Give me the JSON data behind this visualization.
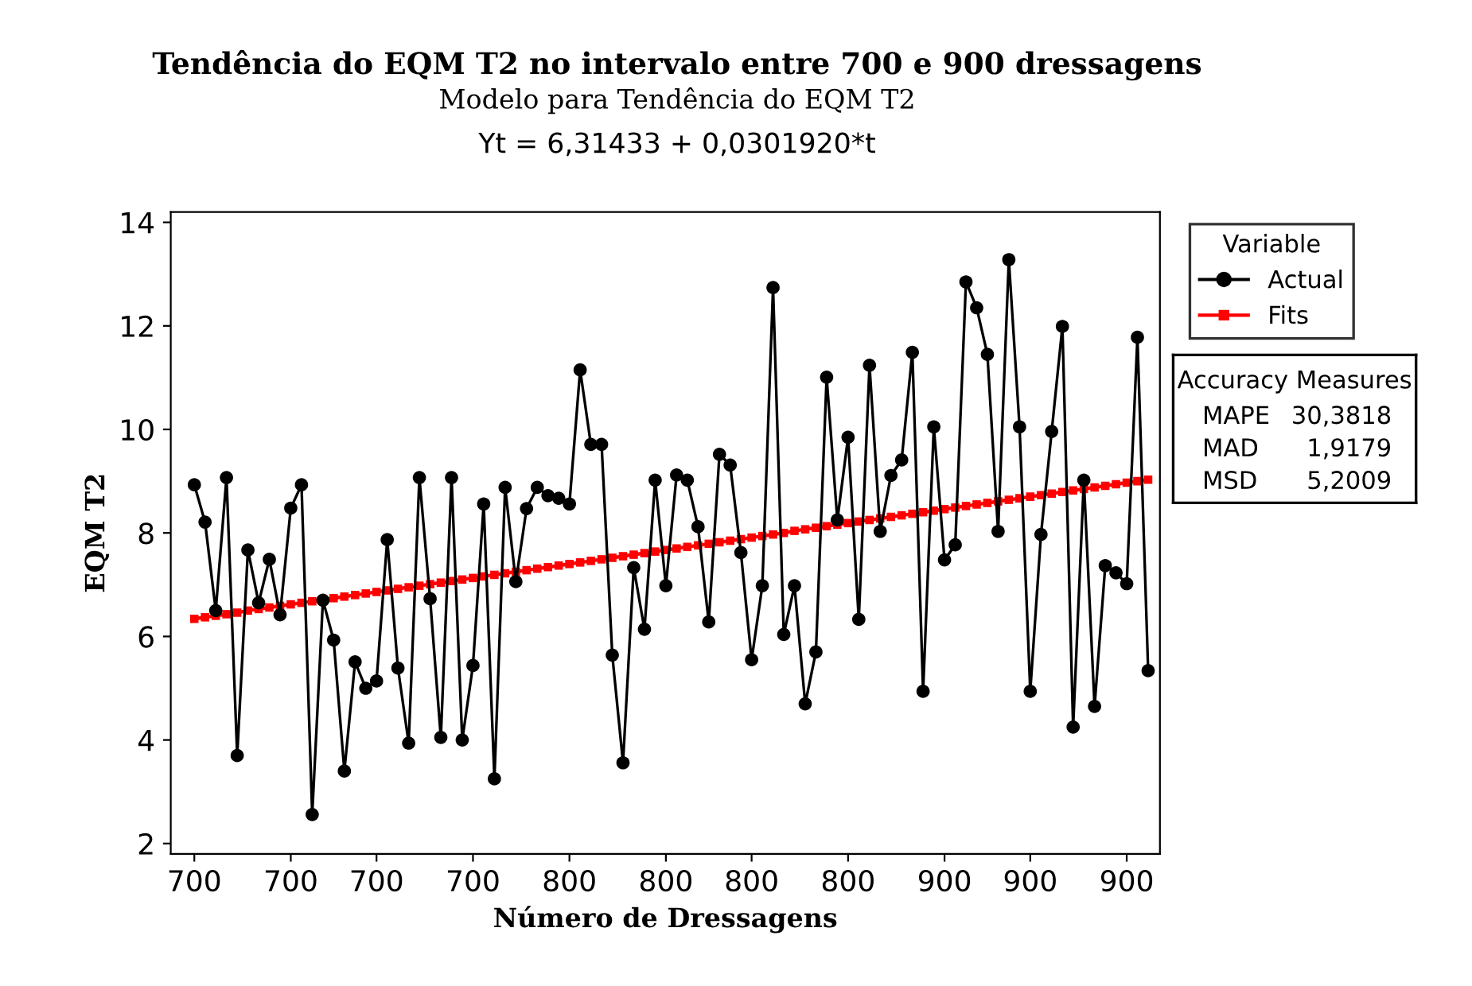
{
  "chart_data": {
    "type": "line",
    "title": "Tendência do EQM T2 no intervalo entre 700 e 900 dressagens",
    "subtitle": "Modelo para Tendência do EQM T2",
    "xlabel": "Número de Dressagens",
    "ylabel": "EQM T2",
    "legend_title": "Variable",
    "legend": "top right",
    "annotations": [
      "Yt = 6,31433 + 0,0301920*t",
      "Accuracy Measures",
      "MAPE",
      "30,3818",
      "MAD",
      "1,9179",
      "MSD",
      "5,2009"
    ],
    "categories": [
      "700",
      null,
      null,
      null,
      null,
      null,
      null,
      null,
      null,
      "700",
      null,
      null,
      null,
      null,
      null,
      null,
      null,
      "700",
      null,
      null,
      null,
      null,
      null,
      null,
      null,
      null,
      "700",
      null,
      null,
      null,
      null,
      null,
      null,
      null,
      null,
      "800",
      null,
      null,
      null,
      null,
      null,
      null,
      null,
      null,
      "800",
      null,
      null,
      null,
      null,
      null,
      null,
      null,
      "800",
      null,
      null,
      null,
      null,
      null,
      null,
      null,
      null,
      "800",
      null,
      null,
      null,
      null,
      null,
      null,
      null,
      null,
      "900",
      null,
      null,
      null,
      null,
      null,
      null,
      null,
      "900",
      null,
      null,
      null,
      null,
      null,
      null,
      null,
      null,
      "900",
      null,
      null
    ],
    "ylim": [
      1.8,
      14.2
    ],
    "yticks": [
      2,
      4,
      6,
      8,
      10,
      12,
      14
    ],
    "grid": false,
    "series": [
      {
        "name": "Actual",
        "color": "#000000",
        "marker": "circle",
        "line_style": "solid",
        "values": [
          8.93,
          8.21,
          6.5,
          9.07,
          3.7,
          7.67,
          6.65,
          7.49,
          6.42,
          8.48,
          8.93,
          2.56,
          6.7,
          5.93,
          3.4,
          5.51,
          5.0,
          5.14,
          7.87,
          5.39,
          3.94,
          9.07,
          6.73,
          4.05,
          9.07,
          4.0,
          5.44,
          8.56,
          3.25,
          8.88,
          7.06,
          8.47,
          8.88,
          8.72,
          8.67,
          8.56,
          11.15,
          9.71,
          9.71,
          5.64,
          3.56,
          7.33,
          6.14,
          9.02,
          6.98,
          9.12,
          9.02,
          8.12,
          6.28,
          9.52,
          9.31,
          7.62,
          5.55,
          6.98,
          12.74,
          6.04,
          6.98,
          4.7,
          5.7,
          11.01,
          8.25,
          9.85,
          6.33,
          11.24,
          8.03,
          9.11,
          9.41,
          11.49,
          4.94,
          10.05,
          7.48,
          7.77,
          12.85,
          12.35,
          11.45,
          8.03,
          13.28,
          10.05,
          4.94,
          7.97,
          9.96,
          11.99,
          4.25,
          9.02,
          4.65,
          7.37,
          7.23,
          7.02,
          11.78,
          5.34
        ]
      },
      {
        "name": "Fits",
        "color": "#ff0000",
        "marker": "square",
        "line_style": "solid",
        "values": [
          6.34,
          6.37,
          6.4,
          6.43,
          6.46,
          6.5,
          6.53,
          6.56,
          6.59,
          6.62,
          6.65,
          6.68,
          6.71,
          6.74,
          6.77,
          6.8,
          6.83,
          6.86,
          6.89,
          6.92,
          6.95,
          6.98,
          7.01,
          7.04,
          7.07,
          7.1,
          7.13,
          7.16,
          7.19,
          7.22,
          7.25,
          7.28,
          7.31,
          7.34,
          7.37,
          7.4,
          7.43,
          7.46,
          7.49,
          7.52,
          7.55,
          7.58,
          7.61,
          7.64,
          7.67,
          7.7,
          7.73,
          7.76,
          7.79,
          7.82,
          7.85,
          7.88,
          7.91,
          7.94,
          7.97,
          8.0,
          8.04,
          8.07,
          8.1,
          8.13,
          8.16,
          8.19,
          8.22,
          8.25,
          8.28,
          8.31,
          8.34,
          8.37,
          8.4,
          8.43,
          8.46,
          8.49,
          8.52,
          8.55,
          8.58,
          8.61,
          8.64,
          8.67,
          8.7,
          8.73,
          8.76,
          8.79,
          8.82,
          8.85,
          8.88,
          8.91,
          8.94,
          8.97,
          9.0,
          9.03
        ]
      }
    ]
  }
}
